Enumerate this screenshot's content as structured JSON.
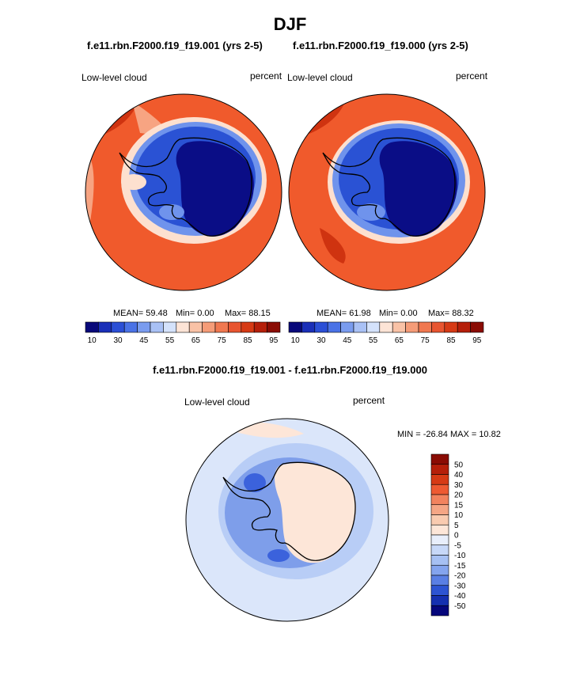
{
  "main_title": "DJF",
  "panel_left": {
    "case_title": "f.e11.rbn.F2000.f19_f19.001 (yrs 2-5)",
    "left_label": "Low-level cloud",
    "right_label": "percent",
    "mean_text": "MEAN=  59.48",
    "min_text": "Min=   0.00",
    "max_text": "Max=  88.15"
  },
  "panel_right": {
    "case_title": "f.e11.rbn.F2000.f19_f19.000 (yrs 2-5)",
    "left_label": "Low-level cloud",
    "right_label": "percent",
    "mean_text": "MEAN=  61.98",
    "min_text": "Min=   0.00",
    "max_text": "Max=  88.32"
  },
  "panel_diff": {
    "case_title": "f.e11.rbn.F2000.f19_f19.001 - f.e11.rbn.F2000.f19_f19.000",
    "left_label": "Low-level cloud",
    "right_label": "percent",
    "minmax_text": "MIN = -26.84 MAX =  10.82"
  },
  "colorbar_abs": {
    "colors": [
      "#08087a",
      "#1a2fb8",
      "#2b4fd6",
      "#4a72e6",
      "#7a9cef",
      "#a9c1f5",
      "#d4e2fb",
      "#fde4d6",
      "#f9c2a6",
      "#f59c78",
      "#f07850",
      "#e85530",
      "#d63a15",
      "#b51f0a",
      "#8a0c04"
    ],
    "tick_labels": [
      "10",
      "30",
      "45",
      "55",
      "65",
      "75",
      "85",
      "95"
    ]
  },
  "colorbar_diff": {
    "colors": [
      "#8a0c04",
      "#b51f0a",
      "#d63a15",
      "#ee5a32",
      "#f2835e",
      "#f5a685",
      "#f9cbb0",
      "#fde6d8",
      "#e8eefb",
      "#c7d8f8",
      "#a6c0f3",
      "#84a4ee",
      "#5a7fe4",
      "#2d54d2",
      "#1530b0",
      "#06077c"
    ],
    "tick_labels": [
      "50",
      "40",
      "30",
      "20",
      "15",
      "10",
      "5",
      "0",
      "-5",
      "-10",
      "-15",
      "-20",
      "-30",
      "-40",
      "-50"
    ]
  },
  "map_colors": {
    "ocean_high": "#f05a2c",
    "ocean_dark": "#cf3310",
    "ocean_light": "#f7a482",
    "ring_pale": "#fde0cf",
    "ring_blue_light": "#6f93ec",
    "ring_blue": "#2a52d4",
    "continent": "#0a0d86",
    "diff_base": "#dbe6fa",
    "diff_ring": "#b8cdf6",
    "diff_ring_dark": "#7e9eea",
    "diff_continent": "#fde6d8",
    "diff_blob": "#3b62dc",
    "coast": "#000000"
  }
}
